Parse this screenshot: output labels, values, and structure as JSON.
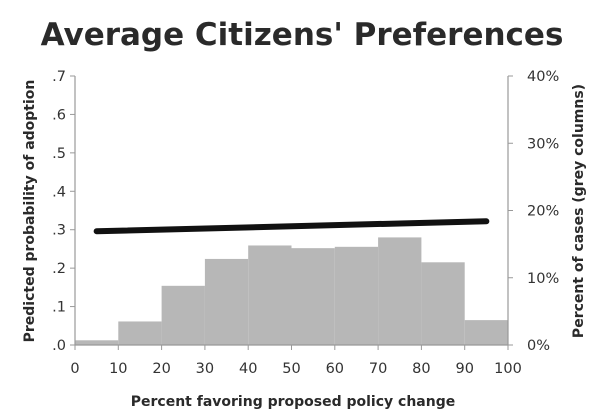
{
  "chart_data": {
    "type": "bar",
    "title": "Average Citizens' Preferences",
    "xlabel": "Percent favoring proposed policy change",
    "ylabel": "Predicted probability of adoption",
    "y2label": "Percent of cases (grey columns)",
    "xlim": [
      0,
      100
    ],
    "ylim": [
      0,
      0.7
    ],
    "y2lim": [
      0,
      40
    ],
    "x_ticks": [
      "0",
      "10",
      "20",
      "30",
      "40",
      "50",
      "60",
      "70",
      "80",
      "90",
      "100"
    ],
    "y_ticks": [
      ".0",
      ".1",
      ".2",
      ".3",
      ".4",
      ".5",
      ".6",
      ".7"
    ],
    "y2_ticks": [
      "0%",
      "10%",
      "20%",
      "30%",
      "40%"
    ],
    "grid": false,
    "colors": {
      "bars": "#b7b7b7",
      "line": "#111111",
      "axis": "#999999"
    },
    "histogram": {
      "axis": "right",
      "bins": [
        {
          "x0": 0,
          "x1": 10,
          "value": 0.7
        },
        {
          "x0": 10,
          "x1": 20,
          "value": 3.5
        },
        {
          "x0": 20,
          "x1": 30,
          "value": 8.8
        },
        {
          "x0": 30,
          "x1": 40,
          "value": 12.8
        },
        {
          "x0": 40,
          "x1": 50,
          "value": 14.8
        },
        {
          "x0": 50,
          "x1": 60,
          "value": 14.4
        },
        {
          "x0": 60,
          "x1": 70,
          "value": 14.6
        },
        {
          "x0": 70,
          "x1": 80,
          "value": 16.0
        },
        {
          "x0": 80,
          "x1": 90,
          "value": 12.3
        },
        {
          "x0": 90,
          "x1": 100,
          "value": 3.7
        }
      ]
    },
    "line": {
      "axis": "left",
      "x": [
        5,
        95
      ],
      "y": [
        0.296,
        0.322
      ]
    }
  }
}
